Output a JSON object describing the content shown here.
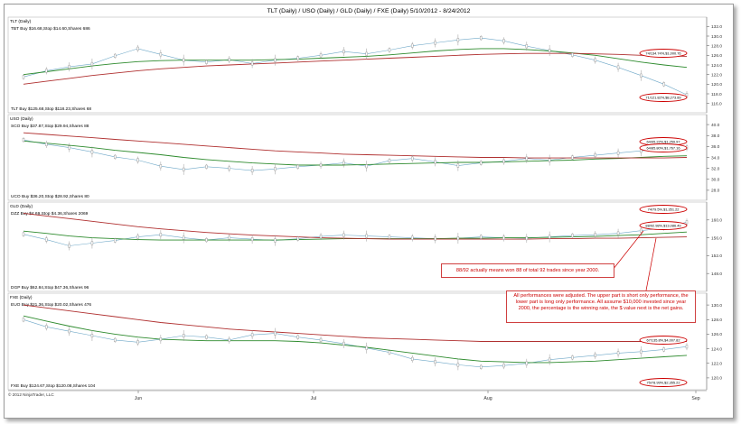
{
  "window": {
    "title": "TLT (Daily) / USO (Daily) / GLD (Daily) / FXE (Daily)  5/10/2012 - 8/24/2012"
  },
  "copyright": "© 2012 NinjaTrader, LLC",
  "x_axis": {
    "labels": [
      "Jun",
      "Jul",
      "Aug",
      "Sep"
    ]
  },
  "panels": [
    {
      "id": "tlt",
      "title": "TLT (Daily)",
      "buy_label": "TBT Buy $16.68,Stop $14.60,Shares 686",
      "bottom_label": "TLT Buy $125.68,Stop $118.23,Shares 68",
      "ticks": [
        132,
        130,
        128,
        126,
        124,
        122,
        120,
        118,
        116
      ],
      "perf_upper": "74/134.74%,$1,000.76",
      "perf_lower": "71/121.82%,$8,273.89",
      "colors": {
        "green": "#2e8b2e",
        "red": "#b03030",
        "price": "#6fa8c8"
      }
    },
    {
      "id": "uso",
      "title": "USO (Daily)",
      "buy_label": "SCO Buy $37.87,Stop $29.94,Shares 88",
      "bottom_label": "UCO Buy $36.20,Stop $28.92,Shares 80",
      "ticks": [
        40,
        38,
        36,
        34,
        32,
        30,
        28
      ],
      "perf_upper": "64/95.22%,$1,259.97",
      "perf_lower": "64/85.80%,$1,767.16",
      "colors": {
        "green": "#2e8b2e",
        "red": "#b03030",
        "price": "#6fa8c8"
      }
    },
    {
      "id": "gld",
      "title": "GLD (Daily)",
      "buy_label": "DZZ Buy $4.69,Stop $4.36,Shares 2069",
      "bottom_label": "DGP Buy $62.84,Stop $47.36,Shares 96",
      "ticks": [
        160,
        156,
        152,
        148
      ],
      "perf_upper": "74/79.5%,$1,351.22",
      "perf_lower": "88/92.98%,$13,086.49",
      "colors": {
        "green": "#2e8b2e",
        "red": "#b03030",
        "price": "#6fa8c8"
      }
    },
    {
      "id": "fxe",
      "title": "FXE (Daily)",
      "buy_label": "EUO Buy $21.36,Stop $20.02,Shares 476",
      "bottom_label": "FXE Buy $124.67,Stop $120.08,Shares 104",
      "ticks": [
        130,
        128,
        126,
        124,
        122,
        120
      ],
      "perf_upper": "67/135.8%,$4,007.82",
      "perf_lower": "75/78.99%,$2,355.22",
      "colors": {
        "green": "#2e8b2e",
        "red": "#b03030",
        "price": "#6fa8c8"
      }
    }
  ],
  "annotations": {
    "note1": "88/92 actually means won 88 of total 92 trades since year 2000.",
    "note2": "All performances were adjusted. The upper part is short only performance, the lower part is long only performance. All assume $10,000 invested since year 2000, the percentage is the winning rate, the $ value next is the net gains."
  },
  "chart_data": [
    {
      "type": "line",
      "title": "TLT (Daily)",
      "ylim": [
        115,
        133
      ],
      "series": [
        {
          "values": [
            121.5,
            122.8,
            123.6,
            124.2,
            125.9,
            127.4,
            126.2,
            125.0,
            124.6,
            125.1,
            124.3,
            125.0,
            125.4,
            126.0,
            126.8,
            126.3,
            127.1,
            128.0,
            128.6,
            129.2,
            129.6,
            129.0,
            127.9,
            127.0,
            126.1,
            125.0,
            123.5,
            121.8,
            120.0,
            117.8
          ]
        },
        {
          "values": [
            122.0,
            122.6,
            123.2,
            123.8,
            124.3,
            124.7,
            124.9,
            125.0,
            125.0,
            125.0,
            125.0,
            125.1,
            125.2,
            125.4,
            125.6,
            125.8,
            126.1,
            126.5,
            126.9,
            127.2,
            127.4,
            127.4,
            127.2,
            126.9,
            126.5,
            126.0,
            125.3,
            124.6,
            124.0,
            123.5
          ]
        },
        {
          "values": [
            120.0,
            120.6,
            121.2,
            121.8,
            122.3,
            122.8,
            123.2,
            123.5,
            123.8,
            124.0,
            124.2,
            124.4,
            124.6,
            124.8,
            125.0,
            125.2,
            125.4,
            125.6,
            125.8,
            126.0,
            126.2,
            126.3,
            126.4,
            126.4,
            126.4,
            126.3,
            126.2,
            126.0,
            125.9,
            125.8
          ]
        }
      ]
    },
    {
      "type": "line",
      "title": "USO (Daily)",
      "ylim": [
        27,
        41
      ],
      "series": [
        {
          "values": [
            37.2,
            36.4,
            35.8,
            35.0,
            34.1,
            33.5,
            32.4,
            31.8,
            32.3,
            32.0,
            31.6,
            31.9,
            32.3,
            32.6,
            33.0,
            32.4,
            33.4,
            33.8,
            33.2,
            32.5,
            33.0,
            33.3,
            33.8,
            33.5,
            34.0,
            34.4,
            34.8,
            35.2,
            35.5,
            35.8
          ]
        },
        {
          "values": [
            37.0,
            36.6,
            36.2,
            35.8,
            35.3,
            34.9,
            34.5,
            34.0,
            33.6,
            33.3,
            33.0,
            32.8,
            32.6,
            32.6,
            32.6,
            32.7,
            32.8,
            32.9,
            33.0,
            33.1,
            33.1,
            33.2,
            33.3,
            33.4,
            33.5,
            33.7,
            33.8,
            34.0,
            34.2,
            34.3
          ]
        },
        {
          "values": [
            38.5,
            38.2,
            37.9,
            37.6,
            37.3,
            37.0,
            36.7,
            36.4,
            36.1,
            35.8,
            35.5,
            35.2,
            35.0,
            34.8,
            34.6,
            34.5,
            34.4,
            34.3,
            34.2,
            34.1,
            34.0,
            34.0,
            33.9,
            33.9,
            33.9,
            33.9,
            33.9,
            33.9,
            33.9,
            34.0
          ]
        }
      ]
    },
    {
      "type": "line",
      "title": "GLD (Daily)",
      "ylim": [
        145,
        163
      ],
      "series": [
        {
          "values": [
            156.8,
            155.6,
            154.2,
            154.8,
            155.4,
            156.2,
            156.7,
            156.0,
            155.5,
            156.0,
            155.7,
            155.4,
            155.8,
            156.3,
            156.6,
            156.4,
            156.2,
            156.0,
            155.8,
            155.9,
            156.2,
            156.0,
            155.9,
            156.2,
            156.5,
            156.7,
            157.0,
            157.6,
            158.2,
            159.5
          ]
        },
        {
          "values": [
            157.5,
            157.0,
            156.4,
            156.0,
            155.8,
            155.6,
            155.5,
            155.5,
            155.5,
            155.5,
            155.5,
            155.5,
            155.6,
            155.7,
            155.8,
            155.8,
            155.8,
            155.8,
            155.8,
            155.9,
            155.9,
            156.0,
            156.0,
            156.1,
            156.2,
            156.3,
            156.5,
            156.7,
            157.0,
            157.3
          ]
        },
        {
          "values": [
            161.5,
            160.9,
            160.3,
            159.7,
            159.1,
            158.5,
            158.0,
            157.6,
            157.2,
            156.9,
            156.6,
            156.4,
            156.2,
            156.0,
            155.9,
            155.8,
            155.7,
            155.7,
            155.7,
            155.7,
            155.7,
            155.7,
            155.7,
            155.8,
            155.8,
            155.9,
            155.9,
            156.0,
            156.1,
            156.2
          ]
        }
      ]
    },
    {
      "type": "line",
      "title": "FXE (Daily)",
      "ylim": [
        119,
        131
      ],
      "series": [
        {
          "values": [
            128.0,
            127.0,
            126.4,
            125.8,
            125.2,
            124.9,
            125.3,
            125.8,
            125.6,
            125.2,
            125.9,
            126.1,
            125.6,
            125.2,
            124.7,
            124.1,
            123.5,
            122.6,
            122.2,
            121.8,
            121.5,
            121.7,
            122.0,
            122.5,
            122.8,
            123.1,
            123.4,
            123.6,
            123.9,
            124.3
          ]
        },
        {
          "values": [
            128.5,
            127.8,
            127.1,
            126.5,
            126.0,
            125.6,
            125.3,
            125.2,
            125.1,
            125.1,
            125.1,
            125.1,
            125.0,
            124.8,
            124.5,
            124.2,
            123.8,
            123.4,
            123.0,
            122.6,
            122.3,
            122.2,
            122.1,
            122.1,
            122.2,
            122.3,
            122.5,
            122.7,
            122.9,
            123.1
          ]
        },
        {
          "values": [
            130.0,
            129.6,
            129.2,
            128.8,
            128.4,
            128.0,
            127.6,
            127.3,
            127.0,
            126.7,
            126.5,
            126.3,
            126.1,
            125.9,
            125.7,
            125.5,
            125.4,
            125.3,
            125.2,
            125.1,
            125.0,
            125.0,
            125.0,
            125.0,
            125.0,
            125.0,
            125.0,
            125.0,
            125.0,
            125.0
          ]
        }
      ]
    }
  ]
}
